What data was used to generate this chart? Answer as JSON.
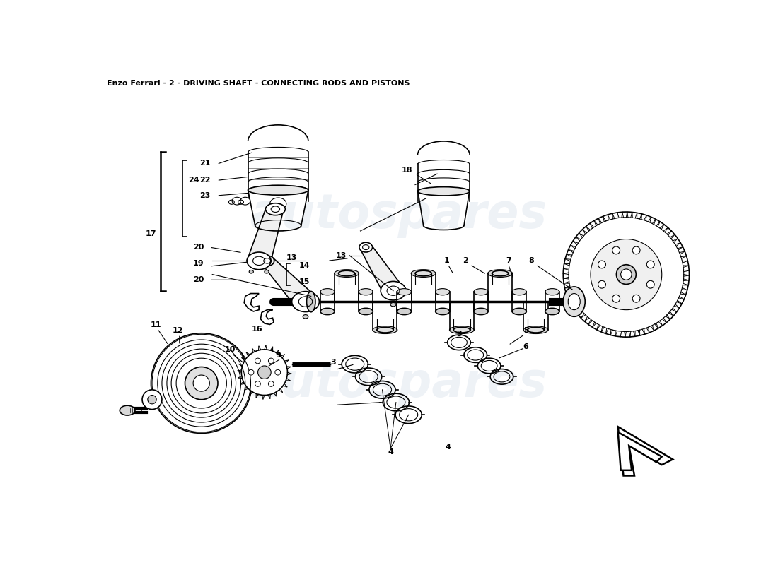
{
  "title": "Enzo Ferrari - 2 - DRIVING SHAFT - CONNECTING RODS AND PISTONS",
  "title_fontsize": 8,
  "background_color": "#ffffff",
  "watermark_text": "autospares",
  "watermark_color": "#c8d4e4",
  "watermark_fontsize": 48,
  "watermark_alpha": 0.3,
  "fig_width": 11.0,
  "fig_height": 8.0,
  "dpi": 100,
  "label_fontsize": 8,
  "label_fontweight": "bold"
}
